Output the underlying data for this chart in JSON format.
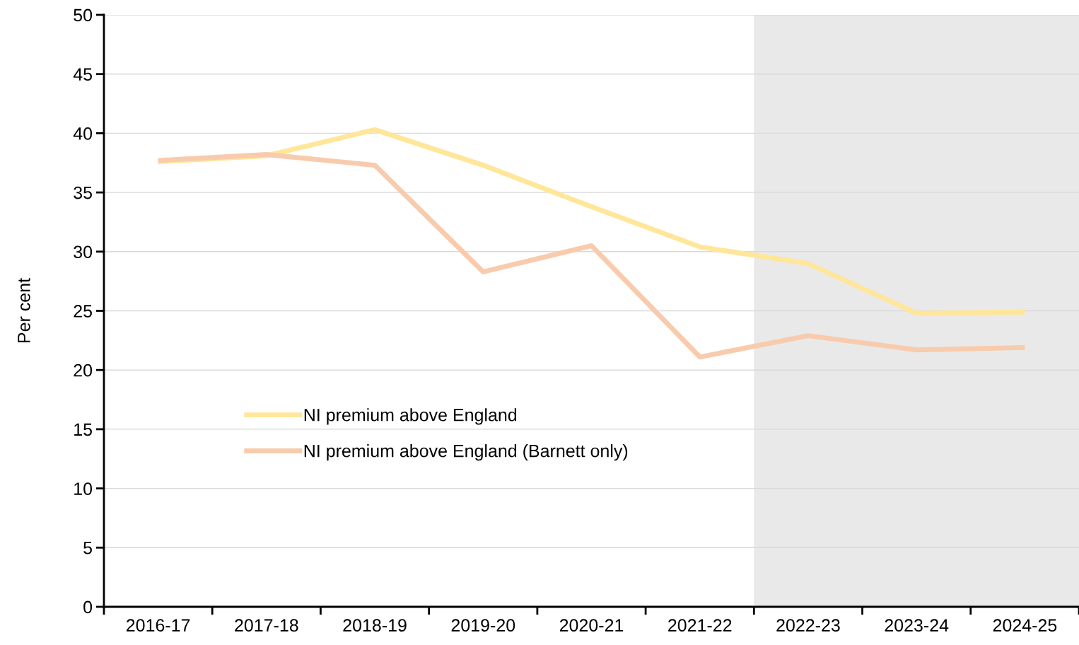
{
  "chart_data": {
    "type": "line",
    "ylabel": "Per cent",
    "categories": [
      "2016-17",
      "2017-18",
      "2018-19",
      "2019-20",
      "2020-21",
      "2021-22",
      "2022-23",
      "2023-24",
      "2024-25"
    ],
    "series": [
      {
        "name": "NI premium above England",
        "color": "#ffe699",
        "values": [
          37.6,
          38.1,
          40.3,
          37.3,
          33.8,
          30.4,
          29.0,
          24.8,
          24.9
        ]
      },
      {
        "name": "NI premium above England (Barnett only)",
        "color": "#f8cbad",
        "values": [
          37.7,
          38.2,
          37.3,
          28.3,
          30.5,
          21.1,
          22.9,
          21.7,
          21.9
        ]
      }
    ],
    "ylim": [
      0,
      50
    ],
    "yticks": [
      0,
      5,
      10,
      15,
      20,
      25,
      30,
      35,
      40,
      45,
      50
    ],
    "bands": [
      {
        "axis": "x",
        "from": "2022-23",
        "to": "2024-25",
        "color": "#e9e9e9"
      }
    ],
    "grid": "y",
    "legend": "bottom left",
    "marker": "none",
    "line_style": "solid"
  }
}
